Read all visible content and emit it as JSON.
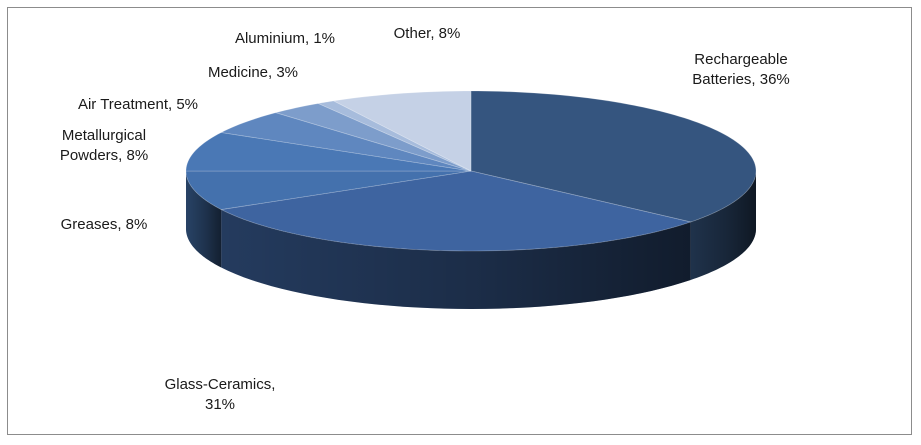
{
  "chart_data": {
    "type": "pie",
    "title": "",
    "three_d": true,
    "legend": "none",
    "slices": [
      {
        "label": "Rechargeable Batteries",
        "value": 36,
        "display": [
          "Rechargeable",
          "Batteries, 36%"
        ],
        "color": "#35557f"
      },
      {
        "label": "Glass-Ceramics",
        "value": 31,
        "display": [
          "Glass-Ceramics,",
          "31%"
        ],
        "color": "#3e64a0"
      },
      {
        "label": "Greases",
        "value": 8,
        "display": [
          "Greases, 8%"
        ],
        "color": "#4471ad"
      },
      {
        "label": "Metallurgical Powders",
        "value": 8,
        "display": [
          "Metallurgical",
          "Powders, 8%"
        ],
        "color": "#4a78b5"
      },
      {
        "label": "Air Treatment",
        "value": 5,
        "display": [
          "Air Treatment, 5%"
        ],
        "color": "#5f87bf"
      },
      {
        "label": "Medicine",
        "value": 3,
        "display": [
          "Medicine, 3%"
        ],
        "color": "#7d9dcb"
      },
      {
        "label": "Aluminium",
        "value": 1,
        "display": [
          "Aluminium, 1%"
        ],
        "color": "#a7bcdc"
      },
      {
        "label": "Other",
        "value": 8,
        "display": [
          "Other, 8%"
        ],
        "color": "#c5d1e6"
      }
    ]
  }
}
